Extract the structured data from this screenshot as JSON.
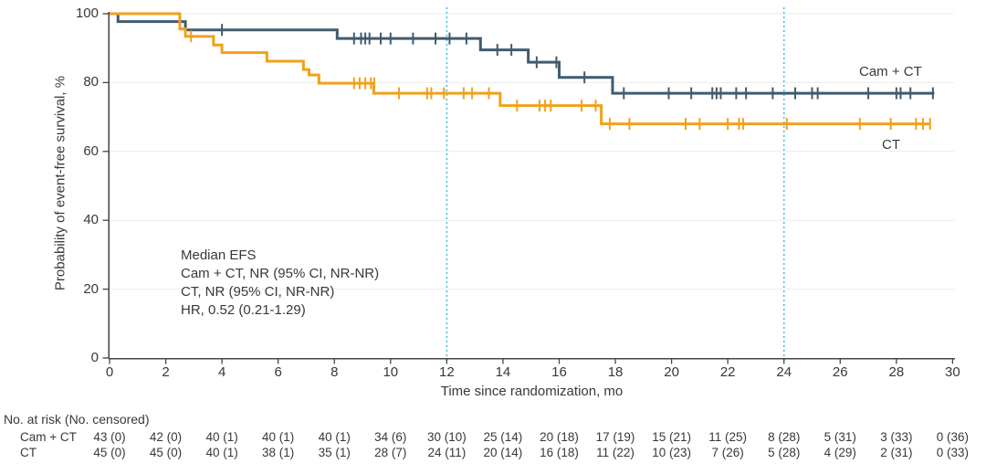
{
  "figure": {
    "y_axis_label": "Probability of event-free survival, %",
    "x_axis_label": "Time since randomization, mo",
    "annotation_lines": [
      "Median EFS",
      "Cam + CT, NR (95% CI, NR-NR)",
      "CT, NR (95% CI, NR-NR)",
      "HR, 0.52 (0.21-1.29)"
    ]
  },
  "colors": {
    "cam_ct": "#415b6e",
    "ct": "#f0a11c",
    "reference_line": "#4fc3e8",
    "gridline": "#ebebeb",
    "axis": "#454545",
    "text": "#383838"
  },
  "chart_data": {
    "type": "line",
    "subtype": "kaplan-meier-step",
    "title": "",
    "xlabel": "Time since randomization, mo",
    "ylabel": "Probability of event-free survival, %",
    "xlim": [
      0,
      30
    ],
    "ylim": [
      0,
      100
    ],
    "x_ticks": [
      0,
      2,
      4,
      6,
      8,
      10,
      12,
      14,
      16,
      18,
      20,
      22,
      24,
      26,
      28,
      30
    ],
    "y_ticks": [
      0,
      20,
      40,
      60,
      80,
      100
    ],
    "grid": "horizontal",
    "reference_lines_x": [
      12,
      24
    ],
    "legend_position": "on-curve-right",
    "series": [
      {
        "name": "Cam + CT",
        "color": "#415b6e",
        "steps": [
          [
            0,
            100
          ],
          [
            0.3,
            97.7
          ],
          [
            2.7,
            95.3
          ],
          [
            8.1,
            92.8
          ],
          [
            13.2,
            89.5
          ],
          [
            14.9,
            85.9
          ],
          [
            16.0,
            81.5
          ],
          [
            17.9,
            76.9
          ],
          [
            29.35,
            76.9
          ]
        ],
        "censors": [
          [
            4.0,
            95.3
          ],
          [
            8.7,
            92.8
          ],
          [
            8.95,
            92.8
          ],
          [
            9.1,
            92.8
          ],
          [
            9.25,
            92.8
          ],
          [
            9.65,
            92.8
          ],
          [
            10.0,
            92.8
          ],
          [
            10.8,
            92.8
          ],
          [
            11.6,
            92.8
          ],
          [
            12.1,
            92.8
          ],
          [
            12.7,
            92.8
          ],
          [
            13.8,
            89.5
          ],
          [
            14.3,
            89.5
          ],
          [
            15.2,
            85.9
          ],
          [
            15.9,
            85.9
          ],
          [
            16.9,
            81.5
          ],
          [
            18.3,
            76.9
          ],
          [
            19.9,
            76.9
          ],
          [
            20.7,
            76.9
          ],
          [
            21.45,
            76.9
          ],
          [
            21.6,
            76.9
          ],
          [
            21.75,
            76.9
          ],
          [
            22.3,
            76.9
          ],
          [
            22.65,
            76.9
          ],
          [
            23.6,
            76.9
          ],
          [
            24.4,
            76.9
          ],
          [
            25.0,
            76.9
          ],
          [
            25.2,
            76.9
          ],
          [
            27.0,
            76.9
          ],
          [
            28.0,
            76.9
          ],
          [
            28.15,
            76.9
          ],
          [
            28.5,
            76.9
          ],
          [
            29.3,
            76.9
          ]
        ]
      },
      {
        "name": "CT",
        "color": "#f0a11c",
        "steps": [
          [
            0,
            100
          ],
          [
            2.5,
            95.6
          ],
          [
            2.7,
            93.4
          ],
          [
            3.7,
            90.9
          ],
          [
            4.0,
            88.7
          ],
          [
            5.6,
            86.2
          ],
          [
            6.9,
            83.8
          ],
          [
            7.1,
            82.2
          ],
          [
            7.45,
            79.8
          ],
          [
            9.4,
            76.9
          ],
          [
            13.9,
            73.3
          ],
          [
            17.5,
            68.0
          ],
          [
            29.2,
            68.0
          ]
        ],
        "censors": [
          [
            2.9,
            93.4
          ],
          [
            8.7,
            79.8
          ],
          [
            8.9,
            79.8
          ],
          [
            9.1,
            79.8
          ],
          [
            9.3,
            79.8
          ],
          [
            9.42,
            79.8
          ],
          [
            10.3,
            76.9
          ],
          [
            11.3,
            76.9
          ],
          [
            11.45,
            76.9
          ],
          [
            11.9,
            76.9
          ],
          [
            12.6,
            76.9
          ],
          [
            12.9,
            76.9
          ],
          [
            13.5,
            76.9
          ],
          [
            14.5,
            73.3
          ],
          [
            15.3,
            73.3
          ],
          [
            15.5,
            73.3
          ],
          [
            15.7,
            73.3
          ],
          [
            16.8,
            73.3
          ],
          [
            17.3,
            73.3
          ],
          [
            17.8,
            68.0
          ],
          [
            18.5,
            68.0
          ],
          [
            20.5,
            68.0
          ],
          [
            21.0,
            68.0
          ],
          [
            22.0,
            68.0
          ],
          [
            22.4,
            68.0
          ],
          [
            22.55,
            68.0
          ],
          [
            24.1,
            68.0
          ],
          [
            26.7,
            68.0
          ],
          [
            27.8,
            68.0
          ],
          [
            28.7,
            68.0
          ],
          [
            28.95,
            68.0
          ],
          [
            29.2,
            68.0
          ]
        ]
      }
    ]
  },
  "risk_table": {
    "header": "No. at risk (No. censored)",
    "times": [
      0,
      2,
      4,
      6,
      8,
      10,
      12,
      14,
      16,
      18,
      20,
      22,
      24,
      26,
      28,
      30
    ],
    "rows": [
      {
        "label": "Cam + CT",
        "values": [
          "43 (0)",
          "42 (0)",
          "40 (1)",
          "40 (1)",
          "40 (1)",
          "34 (6)",
          "30 (10)",
          "25 (14)",
          "20 (18)",
          "17 (19)",
          "15 (21)",
          "11 (25)",
          "8 (28)",
          "5 (31)",
          "3 (33)",
          "0 (36)"
        ]
      },
      {
        "label": "CT",
        "values": [
          "45 (0)",
          "45 (0)",
          "40 (1)",
          "38 (1)",
          "35 (1)",
          "28 (7)",
          "24 (11)",
          "20 (14)",
          "16 (18)",
          "11 (22)",
          "10 (23)",
          "7 (26)",
          "5 (28)",
          "4 (29)",
          "2 (31)",
          "0 (33)"
        ]
      }
    ]
  }
}
